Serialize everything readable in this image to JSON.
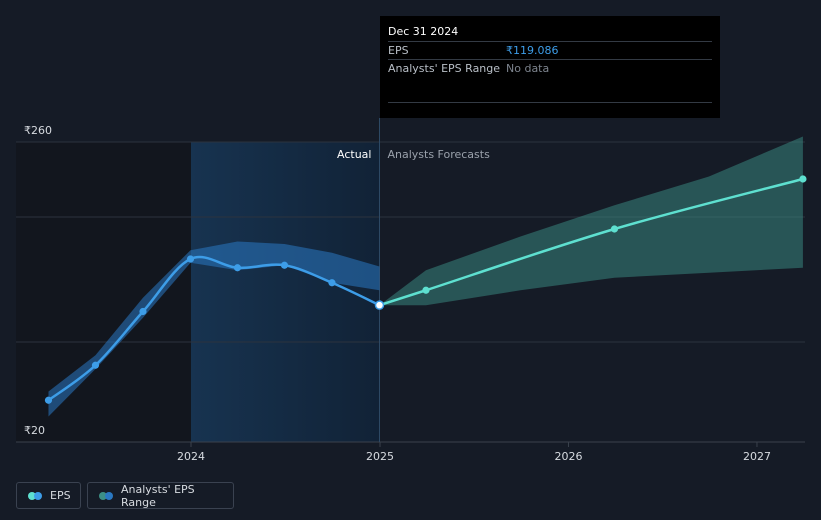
{
  "chart_data": {
    "type": "line",
    "currency_symbol": "₹",
    "y_axis": {
      "ticks": [
        "₹260",
        "₹20"
      ],
      "ylim": [
        20,
        260
      ]
    },
    "x_axis": {
      "ticks": [
        "2024",
        "2025",
        "2026",
        "2027"
      ]
    },
    "section_labels": {
      "actual": "Actual",
      "forecast": "Analysts Forecasts"
    },
    "series": [
      {
        "name": "EPS",
        "color": "#3d9de8",
        "points": [
          [
            "2023-03-31",
            43
          ],
          [
            "2023-06-30",
            71
          ],
          [
            "2023-09-30",
            114
          ],
          [
            "2023-12-31",
            156
          ],
          [
            "2024-03-31",
            149
          ],
          [
            "2024-06-30",
            151
          ],
          [
            "2024-09-30",
            137
          ],
          [
            "2024-12-31",
            119.086
          ]
        ]
      },
      {
        "name": "EPS Forecast",
        "color": "#5ee0d0",
        "points": [
          [
            "2024-12-31",
            119.086
          ],
          [
            "2025-03-31",
            131
          ],
          [
            "2026-03-31",
            180
          ],
          [
            "2027-03-31",
            220
          ]
        ]
      }
    ],
    "ranges": [
      {
        "name": "Analysts' EPS Range (historical)",
        "color": "#2a78c2",
        "x": [
          "2023-03-31",
          "2023-06-30",
          "2023-09-30",
          "2023-12-31",
          "2024-03-31",
          "2024-06-30",
          "2024-09-30",
          "2024-12-31"
        ],
        "low": [
          30,
          68,
          109,
          153,
          147,
          151,
          137,
          131
        ],
        "high": [
          50,
          79,
          125,
          163,
          170,
          168,
          161,
          150
        ]
      },
      {
        "name": "Analysts' EPS Range",
        "color": "#3c8f86",
        "x": [
          "2024-12-31",
          "2025-03-31",
          "2025-09-30",
          "2026-03-31",
          "2026-09-30",
          "2027-03-31"
        ],
        "low": [
          119,
          119,
          131,
          141,
          145,
          149
        ],
        "high": [
          119,
          147,
          174,
          199,
          222,
          254
        ]
      }
    ],
    "grid": true
  },
  "tooltip": {
    "date": "Dec 31 2024",
    "eps_label": "EPS",
    "eps_value": "₹119.086",
    "range_label": "Analysts' EPS Range",
    "range_value": "No data"
  },
  "legend": {
    "eps_label": "EPS",
    "range_label": "Analysts' EPS Range",
    "eps_colors": [
      "#5ee0d0",
      "#3d9de8"
    ],
    "range_colors": [
      "#3c8f86",
      "#2a78c2"
    ]
  }
}
